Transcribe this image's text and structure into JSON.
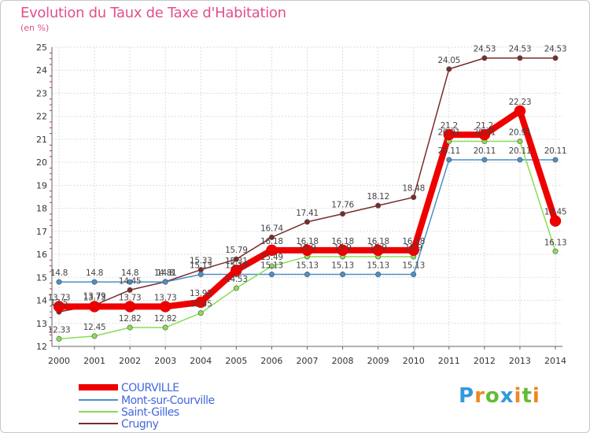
{
  "title": "Evolution du Taux de Taxe d'Habitation",
  "subtitle": "(en %)",
  "logo_text": "Proxiti",
  "chart_data": {
    "type": "line",
    "x": [
      2000,
      2001,
      2002,
      2003,
      2004,
      2005,
      2006,
      2007,
      2008,
      2009,
      2010,
      2011,
      2012,
      2013,
      2014
    ],
    "ylim": [
      12,
      25
    ],
    "yticks": [
      12,
      13,
      14,
      15,
      16,
      17,
      18,
      19,
      20,
      21,
      22,
      23,
      24,
      25
    ],
    "grid": true,
    "legend_position": "bottom-left",
    "series": [
      {
        "name": "COURVILLE",
        "color": "#ee0000",
        "values": [
          13.73,
          13.73,
          13.73,
          13.73,
          13.92,
          15.31,
          16.18,
          16.18,
          16.18,
          16.18,
          16.18,
          21.2,
          21.2,
          22.23,
          17.45
        ]
      },
      {
        "name": "Mont-sur-Courville",
        "color": "#4a90c8",
        "values": [
          14.8,
          14.8,
          14.8,
          14.8,
          15.13,
          15.13,
          15.13,
          15.13,
          15.13,
          15.13,
          15.13,
          20.11,
          20.11,
          20.11,
          20.11
        ]
      },
      {
        "name": "Saint-Gilles",
        "color": "#88dd55",
        "values": [
          12.33,
          12.45,
          12.82,
          12.82,
          13.45,
          14.53,
          15.49,
          15.9,
          15.9,
          15.9,
          15.9,
          20.91,
          20.91,
          20.91,
          16.13
        ]
      },
      {
        "name": "Crugny",
        "color": "#7a2b2b",
        "values": [
          13.5,
          13.79,
          14.45,
          14.81,
          15.33,
          15.79,
          16.74,
          17.41,
          17.76,
          18.12,
          18.48,
          24.05,
          24.53,
          24.53,
          24.53
        ]
      }
    ],
    "labels": {
      "COURVILLE": [
        "13.73",
        "13.73",
        "13.73",
        "13.73",
        "13.92",
        "15.31",
        "16.18",
        "16.18",
        "16.18",
        "16.18",
        "16.18",
        "21.2",
        "21.2",
        "22.23",
        "17.45"
      ],
      "Mont-sur-Courville": [
        "14.8",
        "14.8",
        "14.8",
        "14.8",
        "15.13",
        "15.13",
        "15.13",
        "15.13",
        "15.13",
        "15.13",
        "15.13",
        "20.11",
        "20.11",
        "20.11",
        "20.11"
      ],
      "Saint-Gilles": [
        "12.33",
        "12.45",
        "12.82",
        "12.82",
        "13.45",
        "14.53",
        "15.49",
        "15.9",
        "15.9",
        "15.9",
        "15.9",
        "20.91",
        "20.91",
        "20.91",
        "16.13"
      ],
      "Crugny": [
        "13.5",
        "13.79",
        "14.45",
        "14.81",
        "15.33",
        "15.79",
        "16.74",
        "17.41",
        "17.76",
        "18.12",
        "18.48",
        "24.05",
        "24.53",
        "24.53",
        "24.53"
      ]
    }
  }
}
